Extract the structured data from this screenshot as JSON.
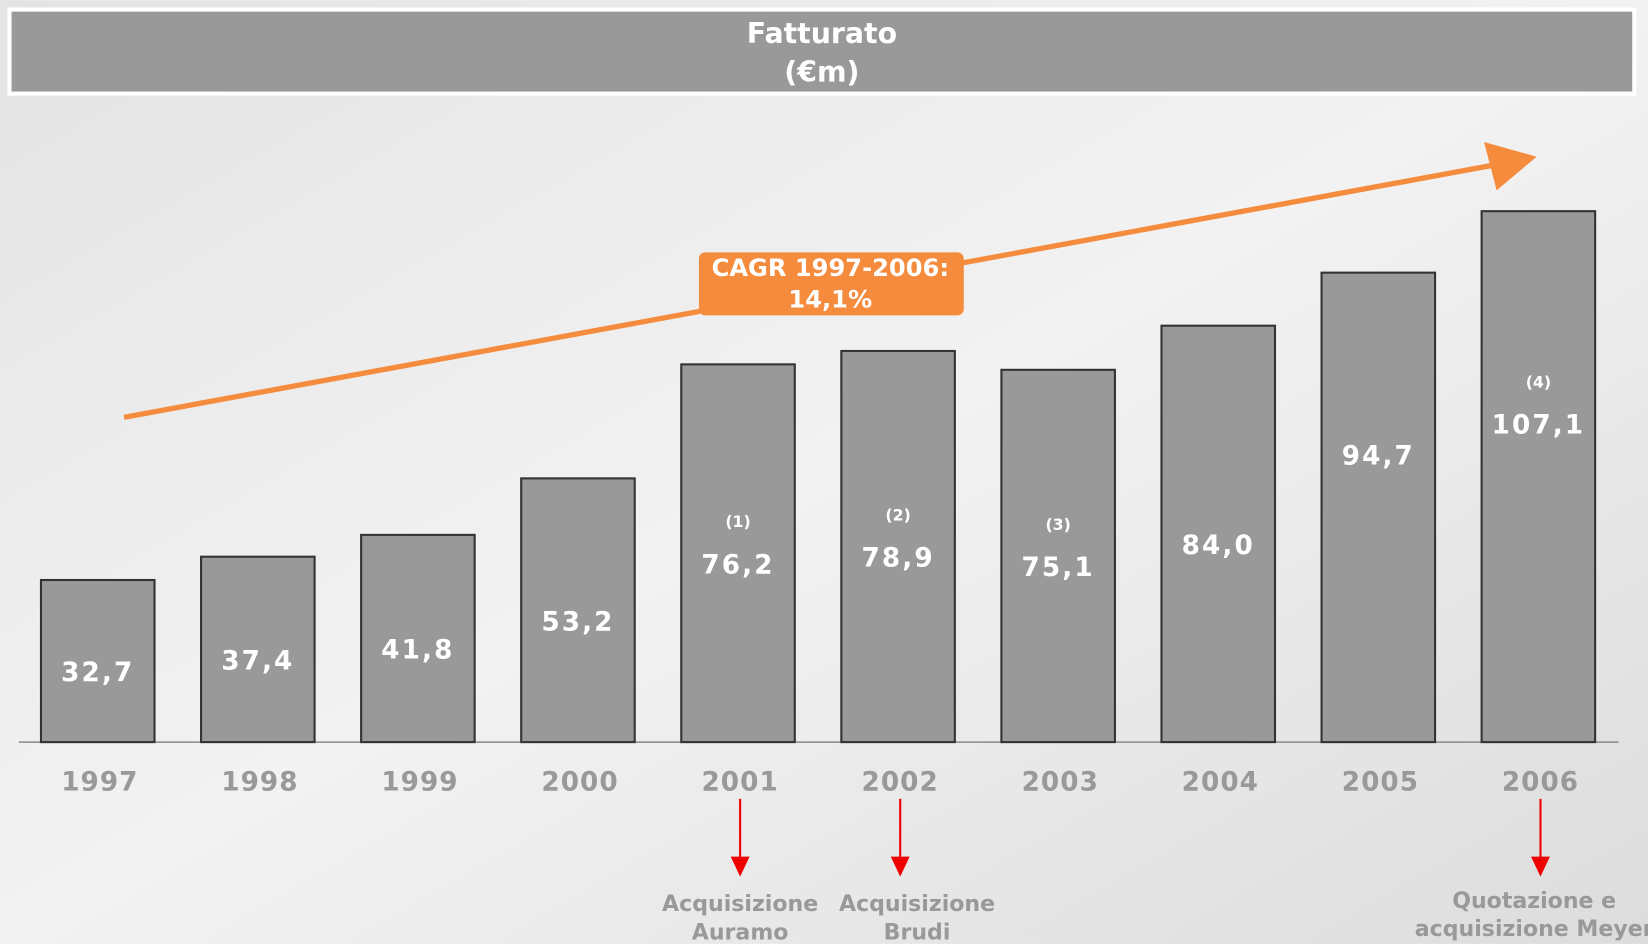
{
  "chart_data": {
    "type": "bar",
    "title": "Fatturato",
    "subtitle": "(€m)",
    "categories": [
      "1997",
      "1998",
      "1999",
      "2000",
      "2001",
      "2002",
      "2003",
      "2004",
      "2005",
      "2006"
    ],
    "values": [
      32.7,
      37.4,
      41.8,
      53.2,
      76.2,
      78.9,
      75.1,
      84.0,
      94.7,
      107.1
    ],
    "value_labels": [
      "32,7",
      "37,4",
      "41,8",
      "53,2",
      "76,2",
      "78,9",
      "75,1",
      "84,0",
      "94,7",
      "107,1"
    ],
    "notes": [
      null,
      null,
      null,
      null,
      "(1)",
      "(2)",
      "(3)",
      null,
      null,
      "(4)"
    ],
    "color": "#999999",
    "ylim": [
      0,
      120
    ],
    "trend_label": [
      "CAGR 1997-2006:",
      "14,1%"
    ],
    "trend_color": "#f58b3c",
    "events": [
      {
        "category": "2001",
        "lines": [
          "Acquisizione",
          "Auramo"
        ]
      },
      {
        "category": "2002",
        "lines": [
          "Acquisizione",
          "Brudi"
        ]
      },
      {
        "category": "2006",
        "lines": [
          "Quotazione e",
          "acquisizione Meyer"
        ]
      }
    ]
  }
}
